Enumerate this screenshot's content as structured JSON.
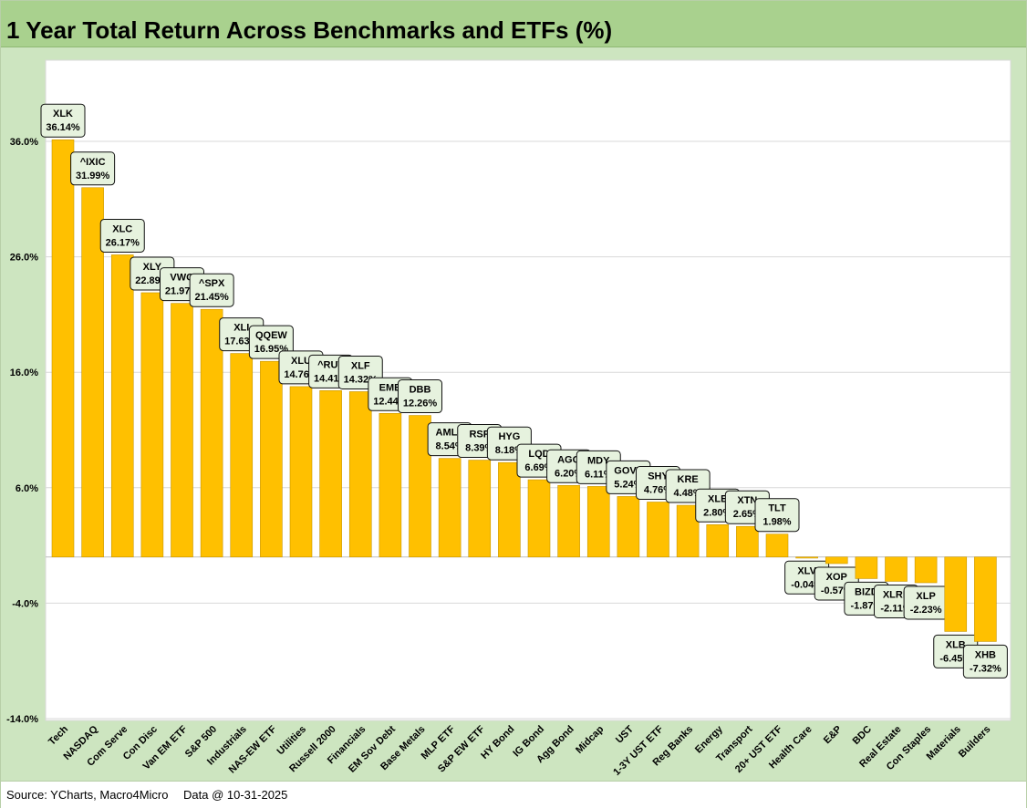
{
  "title": "1 Year Total Return Across Benchmarks and ETFs (%)",
  "footer": {
    "source": "Source: YCharts, Macro4Micro",
    "date": "Data @ 10-31-2025"
  },
  "colors": {
    "bar": "#ffc000",
    "bar_stroke": "#c89600",
    "grid": "#d9d9d9",
    "plot_bg": "#ffffff",
    "label_bg": "#e6f2de"
  },
  "chart_data": {
    "type": "bar",
    "title": "1 Year Total Return Across Benchmarks and ETFs (%)",
    "ylim": [
      -14,
      43
    ],
    "yticks": [
      -14,
      -4,
      6,
      16,
      26,
      36
    ],
    "ytick_labels": [
      "-14.0%",
      "-4.0%",
      "6.0%",
      "16.0%",
      "26.0%",
      "36.0%"
    ],
    "grid": true,
    "bars": [
      {
        "category": "Tech",
        "ticker": "XLK",
        "value": 36.14,
        "label": "36.14%"
      },
      {
        "category": "NASDAQ",
        "ticker": "^IXIC",
        "value": 31.99,
        "label": "31.99%"
      },
      {
        "category": "Com Serve",
        "ticker": "XLC",
        "value": 26.17,
        "label": "26.17%"
      },
      {
        "category": "Con Disc",
        "ticker": "XLY",
        "value": 22.89,
        "label": "22.89%"
      },
      {
        "category": "Van EM ETF",
        "ticker": "VWO",
        "value": 21.97,
        "label": "21.97%"
      },
      {
        "category": "S&P 500",
        "ticker": "^SPX",
        "value": 21.45,
        "label": "21.45%"
      },
      {
        "category": "Industrials",
        "ticker": "XLI",
        "value": 17.63,
        "label": "17.63%"
      },
      {
        "category": "NAS-EW ETF",
        "ticker": "QQEW",
        "value": 16.95,
        "label": "16.95%"
      },
      {
        "category": "Utilities",
        "ticker": "XLU",
        "value": 14.76,
        "label": "14.76%"
      },
      {
        "category": "Russell 2000",
        "ticker": "^RUT",
        "value": 14.41,
        "label": "14.41%"
      },
      {
        "category": "Financials",
        "ticker": "XLF",
        "value": 14.32,
        "label": "14.32%"
      },
      {
        "category": "EM Sov Debt",
        "ticker": "EMB",
        "value": 12.44,
        "label": "12.44%"
      },
      {
        "category": "Base Metals",
        "ticker": "DBB",
        "value": 12.26,
        "label": "12.26%"
      },
      {
        "category": "MLP ETF",
        "ticker": "AMLP",
        "value": 8.54,
        "label": "8.54%"
      },
      {
        "category": "S&P EW ETF",
        "ticker": "RSP",
        "value": 8.39,
        "label": "8.39%"
      },
      {
        "category": "HY Bond",
        "ticker": "HYG",
        "value": 8.18,
        "label": "8.18%"
      },
      {
        "category": "IG Bond",
        "ticker": "LQD",
        "value": 6.69,
        "label": "6.69%"
      },
      {
        "category": "Agg Bond",
        "ticker": "AGG",
        "value": 6.2,
        "label": "6.20%"
      },
      {
        "category": "Midcap",
        "ticker": "MDY",
        "value": 6.11,
        "label": "6.11%"
      },
      {
        "category": "UST",
        "ticker": "GOVT",
        "value": 5.24,
        "label": "5.24%"
      },
      {
        "category": "1-3Y UST ETF",
        "ticker": "SHY",
        "value": 4.76,
        "label": "4.76%"
      },
      {
        "category": "Reg Banks",
        "ticker": "KRE",
        "value": 4.48,
        "label": "4.48%"
      },
      {
        "category": "Energy",
        "ticker": "XLE",
        "value": 2.8,
        "label": "2.80%"
      },
      {
        "category": "Transport",
        "ticker": "XTN",
        "value": 2.65,
        "label": "2.65%"
      },
      {
        "category": "20+ UST ETF",
        "ticker": "TLT",
        "value": 1.98,
        "label": "1.98%"
      },
      {
        "category": "Health Care",
        "ticker": "XLV",
        "value": -0.04,
        "label": "-0.04%"
      },
      {
        "category": "E&P",
        "ticker": "XOP",
        "value": -0.57,
        "label": "-0.57%"
      },
      {
        "category": "BDC",
        "ticker": "BIZD",
        "value": -1.87,
        "label": "-1.87%"
      },
      {
        "category": "Real Estate",
        "ticker": "XLRE",
        "value": -2.11,
        "label": "-2.11%"
      },
      {
        "category": "Con Staples",
        "ticker": "XLP",
        "value": -2.23,
        "label": "-2.23%"
      },
      {
        "category": "Materials",
        "ticker": "XLB",
        "value": -6.45,
        "label": "-6.45%"
      },
      {
        "category": "Builders",
        "ticker": "XHB",
        "value": -7.32,
        "label": "-7.32%"
      }
    ]
  }
}
